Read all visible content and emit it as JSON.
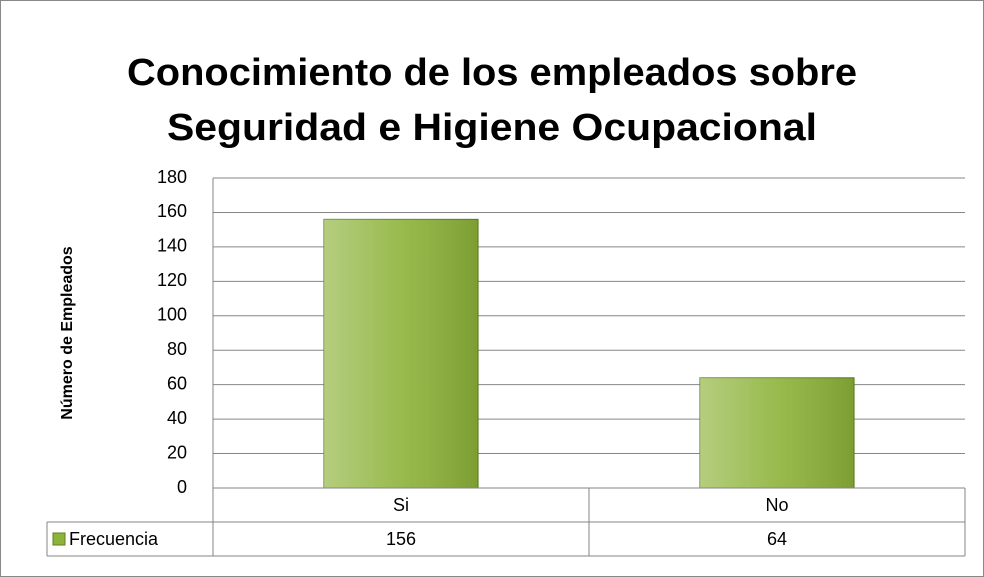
{
  "chart_data": {
    "type": "bar",
    "title": [
      "Conocimiento de los empleados sobre",
      "Seguridad e Higiene Ocupacional"
    ],
    "y_label": "Número de Empleados",
    "categories": [
      "Si",
      "No"
    ],
    "series": [
      {
        "name": "Frecuencia",
        "color": "#8db33a",
        "values": [
          156,
          64
        ]
      }
    ],
    "ylim": [
      0,
      180
    ],
    "yticks": [
      0,
      20,
      40,
      60,
      80,
      100,
      120,
      140,
      160,
      180
    ],
    "grid": true,
    "data_table": true
  }
}
